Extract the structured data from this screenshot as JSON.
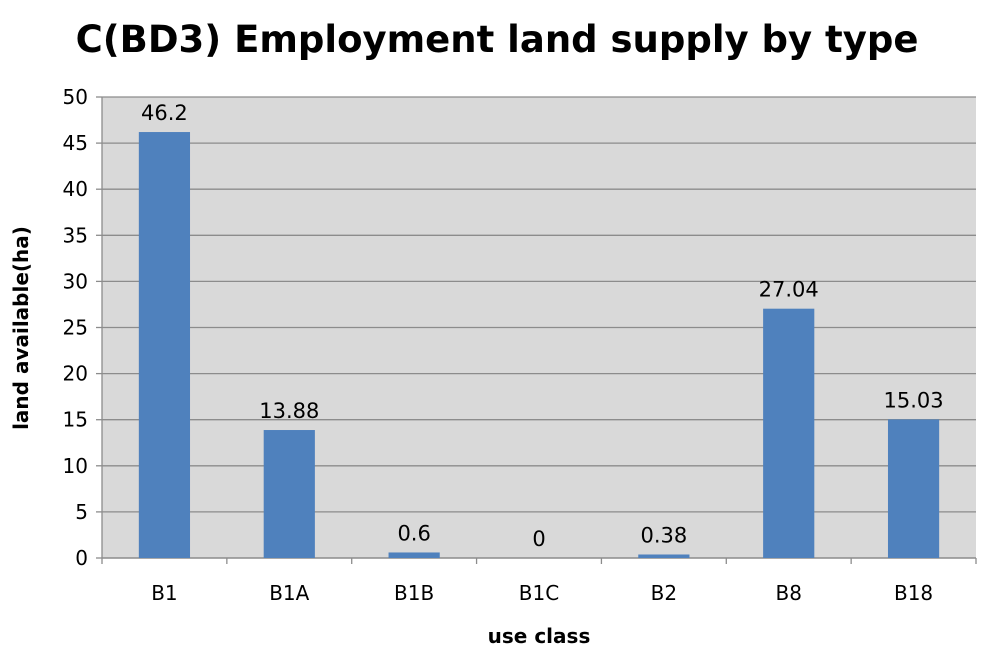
{
  "chart_data": {
    "type": "bar",
    "title": "C(BD3) Employment land supply by type",
    "xlabel": "use class",
    "ylabel": "land available(ha)",
    "categories": [
      "B1",
      "B1A",
      "B1B",
      "B1C",
      "B2",
      "B8",
      "B18"
    ],
    "values": [
      46.2,
      13.88,
      0.6,
      0,
      0.38,
      27.04,
      15.03
    ],
    "data_labels": [
      "46.2",
      "13.88",
      "0.6",
      "0",
      "0.38",
      "27.04",
      "15.03"
    ],
    "ylim": [
      0,
      50
    ],
    "yticks": [
      0,
      5,
      10,
      15,
      20,
      25,
      30,
      35,
      40,
      45,
      50
    ],
    "grid": true,
    "legend": "none",
    "colors": {
      "bar": "#4f81bd",
      "plot_background": "#d9d9d9",
      "gridline": "#8c8c8c"
    }
  }
}
